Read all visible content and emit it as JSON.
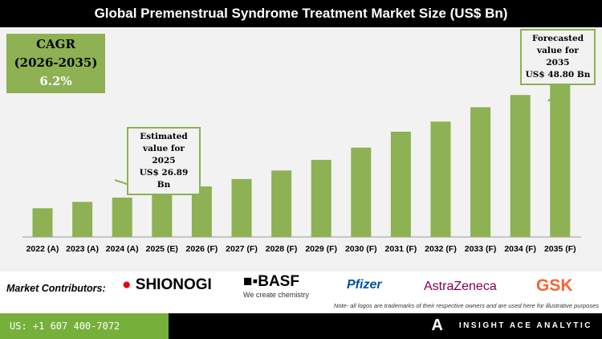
{
  "title": "Global Premenstrual Syndrome Treatment Market Size (US$ Bn)",
  "cagr": {
    "label": "CAGR",
    "period": "(2026-2035)",
    "value": "6.2%"
  },
  "callouts": {
    "estimated": [
      "Estimated",
      "value for 2025",
      "US$ 26.89 Bn"
    ],
    "forecast": [
      "Forecasted",
      "value for 2035",
      "US$ 48.80 Bn"
    ]
  },
  "chart_data": {
    "type": "bar",
    "title": "Global Premenstrual Syndrome Treatment Market Size (US$ Bn)",
    "categories": [
      "2022 (A)",
      "2023 (A)",
      "2024 (A)",
      "2025 (E)",
      "2026 (F)",
      "2027 (F)",
      "2028 (F)",
      "2029 (F)",
      "2030 (F)",
      "2031 (F)",
      "2032 (F)",
      "2033 (F)",
      "2034 (F)",
      "2035 (F)"
    ],
    "values": [
      24.0,
      25.2,
      26.0,
      26.89,
      28.1,
      29.5,
      31.1,
      33.1,
      35.4,
      38.4,
      40.3,
      43.0,
      45.3,
      48.8
    ],
    "bar_color": "#8db153",
    "xlabel": "",
    "ylabel": "",
    "grid": false
  },
  "contributors": {
    "label": "Market Contributors:",
    "logos": [
      "SHIONOGI",
      "BASF",
      "We create chemistry",
      "Pfizer",
      "AstraZeneca",
      "GSK"
    ],
    "note": "Note- all logos are trademarks of their respective owners and are used here for illustrative purposes"
  },
  "footer": {
    "phone": "US: +1 607 400-7072",
    "brand": "INSIGHT ACE ANALYTIC"
  },
  "colors": {
    "accent": "#8db153",
    "footer_green": "#76b03a"
  }
}
